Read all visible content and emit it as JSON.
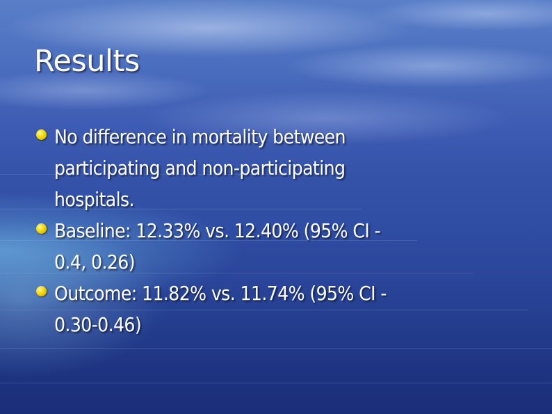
{
  "slide": {
    "title": "Results",
    "bullet_color": "#f5d800",
    "text_color": "#ffffff",
    "bullets": [
      {
        "lines": [
          "No difference in mortality between",
          "participating and non-participating",
          "hospitals."
        ]
      },
      {
        "lines": [
          "Baseline: 12.33% vs. 12.40% (95% CI -",
          "0.4, 0.26)"
        ]
      },
      {
        "lines": [
          "Outcome: 11.82% vs. 11.74% (95% CI -",
          "0.30-0.46)"
        ]
      }
    ]
  }
}
